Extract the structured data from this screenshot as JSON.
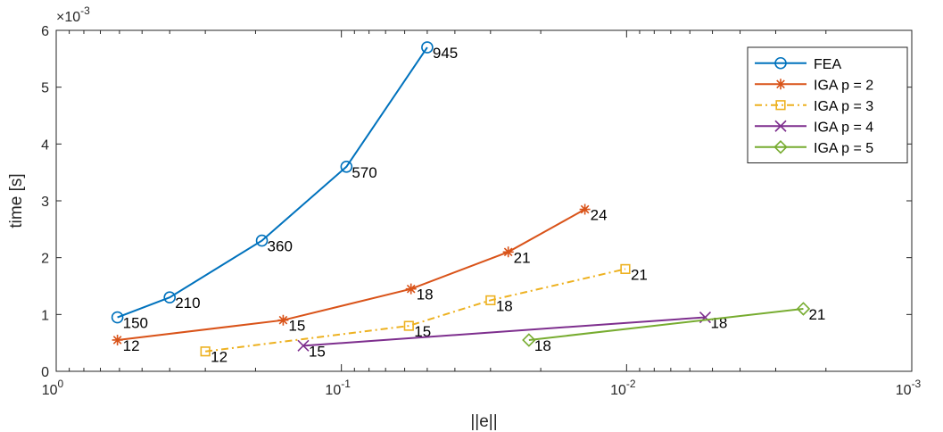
{
  "chart_data": {
    "type": "line",
    "xlabel": "||e||",
    "ylabel": "time [s]",
    "y_exponent_label": "×10",
    "y_exponent_power": "-3",
    "x_scale": "log",
    "x_reversed": true,
    "xlim": [
      1,
      0.001
    ],
    "ylim": [
      0,
      6
    ],
    "y_unit_multiplier": 0.001,
    "grid": false,
    "legend_position": "top-right",
    "x_ticks": [
      {
        "base": "10",
        "exp": "0",
        "value": 1
      },
      {
        "base": "10",
        "exp": "-1",
        "value": 0.1
      },
      {
        "base": "10",
        "exp": "-2",
        "value": 0.01
      },
      {
        "base": "10",
        "exp": "-3",
        "value": 0.001
      }
    ],
    "y_ticks": [
      {
        "label": "0",
        "value": 0
      },
      {
        "label": "1",
        "value": 1
      },
      {
        "label": "2",
        "value": 2
      },
      {
        "label": "3",
        "value": 3
      },
      {
        "label": "4",
        "value": 4
      },
      {
        "label": "5",
        "value": 5
      },
      {
        "label": "6",
        "value": 6
      }
    ],
    "series": [
      {
        "name": "FEA",
        "color": "#0072BD",
        "marker": "circle",
        "dash": "solid",
        "points": [
          {
            "x": 0.61,
            "y": 0.95,
            "label": "150"
          },
          {
            "x": 0.4,
            "y": 1.3,
            "label": "210"
          },
          {
            "x": 0.19,
            "y": 2.3,
            "label": "360"
          },
          {
            "x": 0.096,
            "y": 3.6,
            "label": "570"
          },
          {
            "x": 0.05,
            "y": 5.7,
            "label": "945"
          }
        ]
      },
      {
        "name": "IGA p = 2",
        "color": "#D95319",
        "marker": "asterisk",
        "dash": "solid",
        "points": [
          {
            "x": 0.61,
            "y": 0.55,
            "label": "12"
          },
          {
            "x": 0.16,
            "y": 0.9,
            "label": "15"
          },
          {
            "x": 0.057,
            "y": 1.45,
            "label": "18"
          },
          {
            "x": 0.026,
            "y": 2.1,
            "label": "21"
          },
          {
            "x": 0.014,
            "y": 2.85,
            "label": "24"
          }
        ]
      },
      {
        "name": "IGA p = 3",
        "color": "#EDB120",
        "marker": "square",
        "dash": "dashdot",
        "points": [
          {
            "x": 0.3,
            "y": 0.35,
            "label": "12"
          },
          {
            "x": 0.058,
            "y": 0.8,
            "label": "15"
          },
          {
            "x": 0.03,
            "y": 1.25,
            "label": "18"
          },
          {
            "x": 0.0101,
            "y": 1.8,
            "label": "21"
          }
        ]
      },
      {
        "name": "IGA p = 4",
        "color": "#7E2F8E",
        "marker": "x",
        "dash": "solid",
        "points": [
          {
            "x": 0.136,
            "y": 0.45,
            "label": "15"
          },
          {
            "x": 0.0053,
            "y": 0.95,
            "label": "18"
          }
        ]
      },
      {
        "name": "IGA p = 5",
        "color": "#77AC30",
        "marker": "diamond",
        "dash": "solid",
        "points": [
          {
            "x": 0.022,
            "y": 0.55,
            "label": "18"
          },
          {
            "x": 0.0024,
            "y": 1.1,
            "label": "21"
          }
        ]
      }
    ]
  }
}
